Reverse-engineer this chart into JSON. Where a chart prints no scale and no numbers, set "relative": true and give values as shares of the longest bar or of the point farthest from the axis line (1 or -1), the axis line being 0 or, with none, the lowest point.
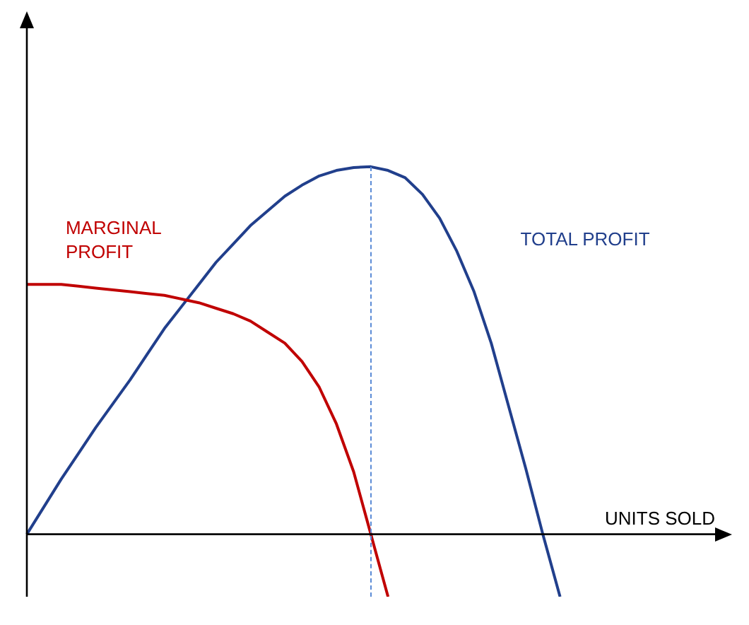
{
  "chart_data": {
    "type": "line",
    "relative": true,
    "xlabel": "UNITS SOLD",
    "marker": "none",
    "line_style": "solid",
    "legend": false,
    "categories": [
      null,
      null,
      null,
      null,
      null,
      null,
      null,
      null,
      null,
      null,
      null,
      null,
      null,
      null,
      null,
      null,
      null,
      null,
      null,
      null,
      null,
      null,
      null,
      null,
      null,
      null,
      null,
      null,
      null,
      null,
      null,
      null,
      null,
      null,
      null,
      null,
      null,
      null,
      null,
      null,
      null,
      null
    ],
    "series": [
      {
        "name": "MARGINAL PROFIT",
        "color": "#c00000",
        "values": [
          0.68,
          0.68,
          0.68,
          0.675,
          0.67,
          0.665,
          0.66,
          0.655,
          0.65,
          0.64,
          0.63,
          0.615,
          0.6,
          0.58,
          0.55,
          0.52,
          0.47,
          0.4,
          0.3,
          0.17,
          0,
          -0.17,
          null,
          null,
          null,
          null,
          null,
          null,
          null,
          null,
          null,
          null,
          null,
          null,
          null,
          null,
          null,
          null,
          null,
          null,
          null,
          null
        ]
      },
      {
        "name": "TOTAL PROFIT",
        "color": "#213f8c",
        "values": [
          0,
          0.075,
          0.15,
          0.22,
          0.29,
          0.355,
          0.42,
          0.49,
          0.56,
          0.62,
          0.68,
          0.74,
          0.79,
          0.84,
          0.88,
          0.92,
          0.95,
          0.975,
          0.99,
          0.998,
          1,
          0.99,
          0.97,
          0.925,
          0.86,
          0.77,
          0.66,
          0.52,
          0.35,
          0.18,
          0,
          -0.17,
          null,
          null,
          null,
          null,
          null,
          null,
          null,
          null,
          null,
          null
        ]
      }
    ]
  }
}
